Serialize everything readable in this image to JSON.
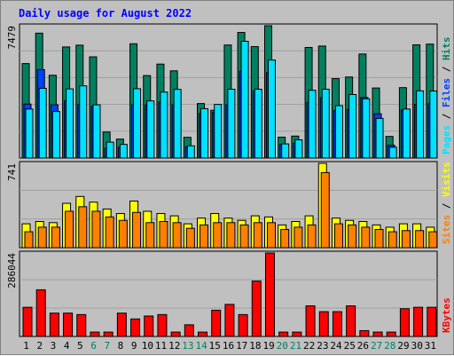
{
  "chart_data": {
    "type": "bar",
    "title": "Daily usage for August 2022",
    "days": [
      "1",
      "2",
      "3",
      "4",
      "5",
      "6",
      "7",
      "8",
      "9",
      "10",
      "11",
      "12",
      "13",
      "14",
      "15",
      "16",
      "17",
      "18",
      "19",
      "20",
      "21",
      "22",
      "23",
      "24",
      "25",
      "26",
      "27",
      "28",
      "29",
      "30",
      "31"
    ],
    "weekend_days": [
      "6",
      "7",
      "13",
      "14",
      "20",
      "21",
      "27",
      "28"
    ],
    "panels": [
      {
        "name": "hits-files-pages",
        "ymax_label": "7479",
        "ymax": 7479,
        "legend": [
          {
            "text": "Pages",
            "color": "#00e0ff"
          },
          {
            "text": " / ",
            "color": "#000000"
          },
          {
            "text": "Files",
            "color": "#0040ff"
          },
          {
            "text": " / ",
            "color": "#000000"
          },
          {
            "text": "Hits",
            "color": "#008060"
          }
        ],
        "series": [
          {
            "name": "Hits",
            "color": "#008060",
            "values": [
              5340,
              7060,
              4680,
              6280,
              6380,
              5720,
              1470,
              1070,
              6460,
              4660,
              5310,
              4930,
              1170,
              3080,
              2700,
              6390,
              7100,
              6300,
              7479,
              1180,
              1240,
              6250,
              6330,
              4490,
              4580,
              5880,
              3960,
              1220,
              3980,
              6400,
              6440
            ]
          },
          {
            "name": "Files",
            "color": "#0040ff",
            "values": [
              3050,
              5000,
              3010,
              3230,
              3030,
              2920,
              550,
              600,
              3020,
              3000,
              3160,
              3010,
              630,
              2510,
              2580,
              3010,
              4900,
              3780,
              4830,
              780,
              840,
              3140,
              3420,
              2690,
              2750,
              3420,
              2500,
              720,
              2720,
              3030,
              3070
            ]
          },
          {
            "name": "Pages",
            "color": "#00e0ff",
            "values": [
              2770,
              3940,
              2630,
              3910,
              4080,
              3010,
              900,
              770,
              3920,
              3230,
              3730,
              3880,
              690,
              2790,
              3030,
              3890,
              6600,
              3890,
              5540,
              800,
              1030,
              3830,
              3890,
              2960,
              3590,
              3350,
              2240,
              610,
              2770,
              3800,
              3790
            ]
          }
        ]
      },
      {
        "name": "visits-sites",
        "ymax_label": "741",
        "ymax": 741,
        "legend": [
          {
            "text": "Sites",
            "color": "#ff8000"
          },
          {
            "text": " / ",
            "color": "#000000"
          },
          {
            "text": "Visits",
            "color": "#ffff00"
          }
        ],
        "series": [
          {
            "name": "Visits",
            "color": "#ffff00",
            "values": [
              210,
              230,
              220,
              390,
              450,
              400,
              340,
              300,
              410,
              320,
              300,
              280,
              210,
              260,
              300,
              260,
              240,
              280,
              270,
              200,
              230,
              280,
              741,
              260,
              240,
              230,
              200,
              180,
              210,
              210,
              180
            ]
          },
          {
            "name": "Sites",
            "color": "#ff8000",
            "values": [
              140,
              180,
              180,
              320,
              360,
              320,
              270,
              240,
              310,
              220,
              230,
              220,
              170,
              200,
              220,
              220,
              200,
              220,
              220,
              160,
              180,
              200,
              660,
              210,
              200,
              180,
              160,
              140,
              150,
              150,
              140
            ]
          }
        ]
      },
      {
        "name": "kbytes",
        "ymax_label": "286044",
        "ymax": 286044,
        "legend": [
          {
            "text": "KBytes",
            "color": "#ff0000"
          }
        ],
        "series": [
          {
            "name": "KBytes",
            "color": "#ff0000",
            "values": [
              100000,
              160000,
              80000,
              80000,
              75000,
              15000,
              15000,
              80000,
              60000,
              70000,
              75000,
              15000,
              40000,
              15000,
              90000,
              110000,
              75000,
              190000,
              286044,
              15000,
              15000,
              105000,
              85000,
              85000,
              105000,
              20000,
              15000,
              15000,
              95000,
              100000,
              100000
            ]
          }
        ]
      }
    ]
  }
}
